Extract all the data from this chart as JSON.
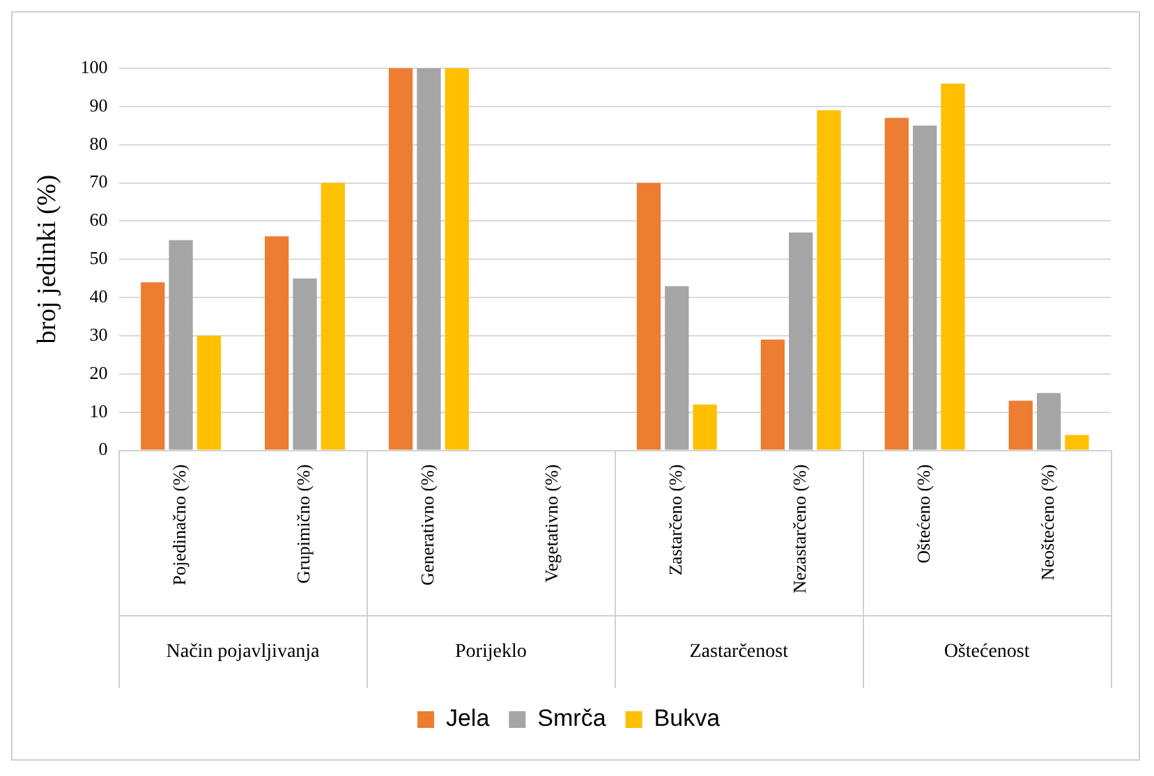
{
  "chart_data": {
    "type": "bar",
    "ylabel": "broj jedinki (%)",
    "categories": [
      "Pojedinačno (%)",
      "Grupimično (%)",
      "Generativno (%)",
      "Vegetativno (%)",
      "Zastarčeno (%)",
      "Nezastarčeno (%)",
      "Oštećeno (%)",
      "Neoštećeno (%)"
    ],
    "series": [
      {
        "name": "Jela",
        "color": "#ed7d31",
        "values": [
          44,
          56,
          100,
          0,
          70,
          29,
          87,
          13
        ]
      },
      {
        "name": "Smrča",
        "color": "#a5a5a5",
        "values": [
          55,
          45,
          100,
          0,
          43,
          57,
          85,
          15
        ]
      },
      {
        "name": "Bukva",
        "color": "#ffc000",
        "values": [
          30,
          70,
          100,
          0,
          12,
          89,
          96,
          4
        ]
      }
    ],
    "annotations": [
      "Način pojavljivanja",
      "Porijeklo",
      "Zastarčenost",
      "Oštećenost"
    ],
    "ylim": [
      0,
      100
    ],
    "yticks": [
      0,
      10,
      20,
      30,
      40,
      50,
      60,
      70,
      80,
      90,
      100
    ],
    "grid": "y",
    "legend": "bottom"
  }
}
